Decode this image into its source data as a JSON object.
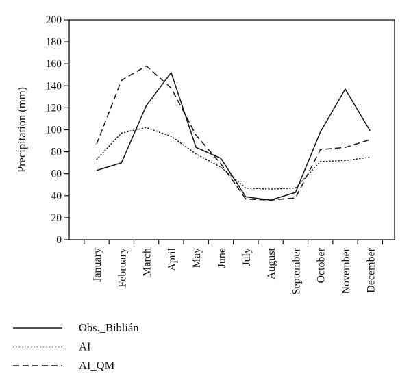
{
  "chart_data": {
    "type": "line",
    "title": "",
    "xlabel": "",
    "ylabel": "Precipitation (mm)",
    "ylim": [
      0,
      200
    ],
    "yticks": [
      0,
      20,
      40,
      60,
      80,
      100,
      120,
      140,
      160,
      180,
      200
    ],
    "grid": false,
    "legend_position": "bottom-left",
    "categories": [
      "January",
      "February",
      "March",
      "April",
      "May",
      "June",
      "July",
      "August",
      "September",
      "October",
      "November",
      "December"
    ],
    "series": [
      {
        "name": "Obs._Biblián",
        "style": "solid",
        "color": "#111111",
        "values": [
          63,
          70,
          122,
          152,
          84,
          74,
          39,
          36,
          43,
          98,
          137,
          99
        ]
      },
      {
        "name": "AI",
        "style": "dotted",
        "color": "#111111",
        "values": [
          73,
          97,
          102,
          94,
          78,
          66,
          47,
          46,
          47,
          71,
          72,
          75
        ]
      },
      {
        "name": "AI_QM",
        "style": "dashed",
        "color": "#111111",
        "values": [
          87,
          145,
          158,
          138,
          95,
          69,
          37,
          36,
          38,
          82,
          84,
          91
        ]
      }
    ]
  }
}
